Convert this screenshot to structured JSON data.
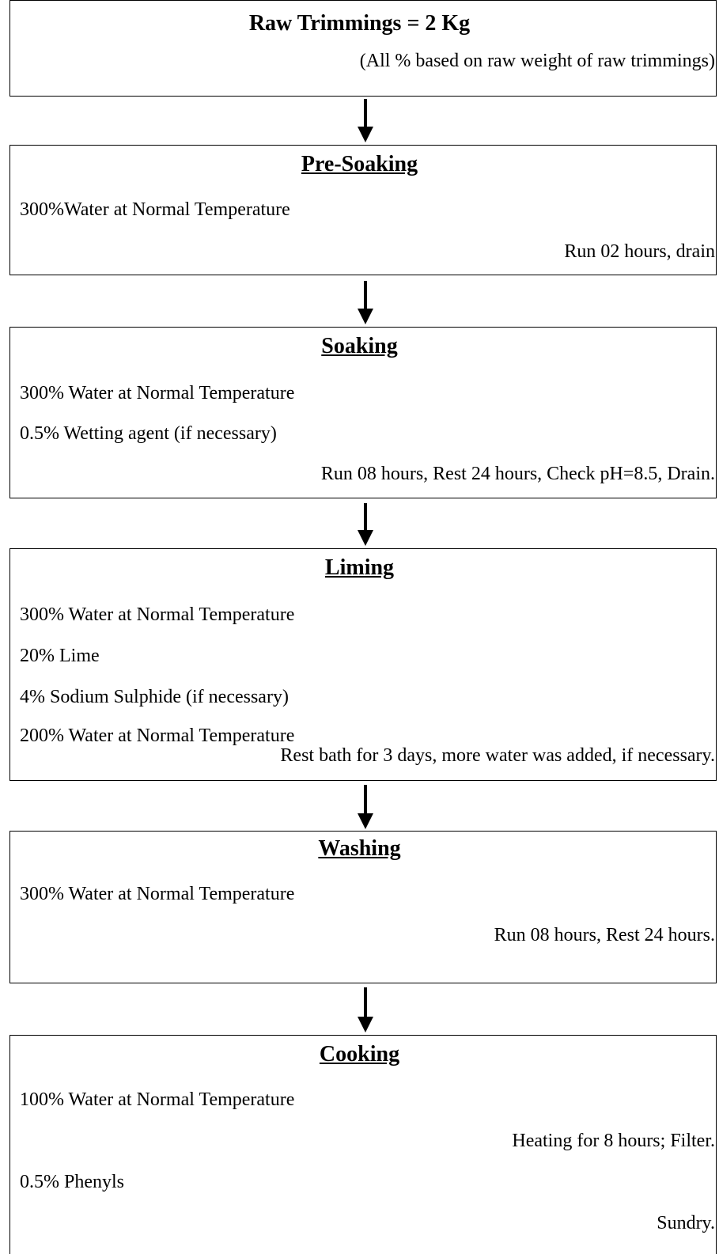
{
  "header": {
    "title": "Raw Trimmings = 2 Kg",
    "note": "(All % based on raw weight of raw trimmings)"
  },
  "steps": [
    {
      "title": "Pre-Soaking",
      "lines": [
        {
          "text": "300%Water at Normal Temperature",
          "align": "left"
        },
        {
          "text": "Run 02 hours, drain",
          "align": "right"
        }
      ]
    },
    {
      "title": "Soaking",
      "lines": [
        {
          "text": "300% Water at Normal Temperature",
          "align": "left"
        },
        {
          "text": "0.5% Wetting agent (if necessary)",
          "align": "left"
        },
        {
          "text": "Run 08 hours, Rest 24 hours, Check pH=8.5, Drain.",
          "align": "right"
        }
      ]
    },
    {
      "title": "Liming",
      "lines": [
        {
          "text": "300% Water at Normal Temperature",
          "align": "left"
        },
        {
          "text": "20% Lime",
          "align": "left"
        },
        {
          "text": "4% Sodium Sulphide (if necessary)",
          "align": "left"
        },
        {
          "text": "200% Water at Normal Temperature",
          "align": "left"
        },
        {
          "text": "Rest bath for 3 days, more water was added, if necessary.",
          "align": "right"
        }
      ]
    },
    {
      "title": "Washing",
      "lines": [
        {
          "text": "300% Water at Normal Temperature",
          "align": "left"
        },
        {
          "text": "Run 08 hours, Rest 24 hours.",
          "align": "right"
        }
      ]
    },
    {
      "title": "Cooking",
      "lines": [
        {
          "text": "100% Water at Normal Temperature",
          "align": "left"
        },
        {
          "text": "Heating for 8 hours; Filter.",
          "align": "right"
        },
        {
          "text": "0.5% Phenyls",
          "align": "left"
        },
        {
          "text": "Sundry.",
          "align": "right"
        }
      ]
    }
  ]
}
